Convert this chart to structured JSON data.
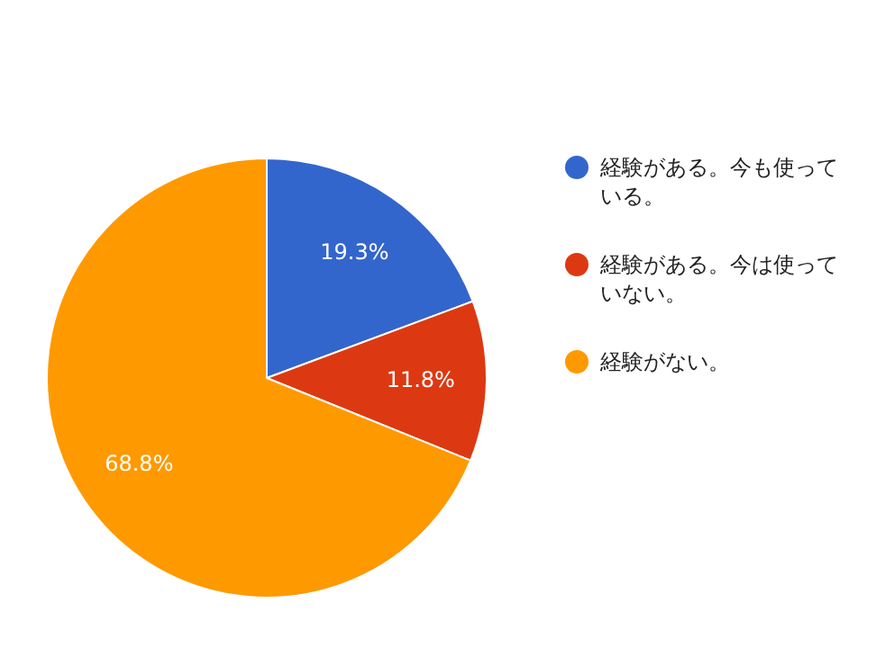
{
  "chart_data": {
    "type": "pie",
    "categories": [
      "経験がある。今も使っている。",
      "経験がある。今は使っていない。",
      "経験がない。"
    ],
    "values": [
      19.3,
      11.8,
      68.8
    ],
    "colors": [
      "#3366cc",
      "#dc3912",
      "#ff9900"
    ],
    "value_labels": [
      "19.3%",
      "11.8%",
      "68.8%"
    ],
    "legend": "right"
  }
}
